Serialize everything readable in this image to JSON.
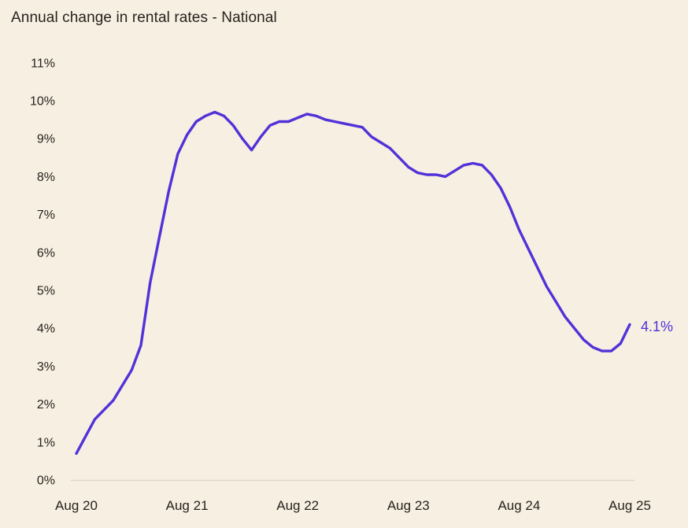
{
  "chart_data": {
    "type": "line",
    "title": "Annual change in rental rates - National",
    "xlabel": "",
    "ylabel": "",
    "ylim": [
      0,
      11
    ],
    "grid": false,
    "legend_position": "none",
    "y_tick_labels": [
      "0%",
      "1%",
      "2%",
      "3%",
      "4%",
      "5%",
      "6%",
      "7%",
      "8%",
      "9%",
      "10%",
      "11%"
    ],
    "x_tick_labels": [
      "Aug 20",
      "Aug 21",
      "Aug 22",
      "Aug 23",
      "Aug 24",
      "Aug 25"
    ],
    "end_label": "4.1%",
    "line_color": "#5132D8",
    "background_color": "#F7EFE2",
    "text_color": "#26221D",
    "axis_line_color": "#DED7C8",
    "x": [
      "Aug 2020",
      "Sep 2020",
      "Oct 2020",
      "Nov 2020",
      "Dec 2020",
      "Jan 2021",
      "Feb 2021",
      "Mar 2021",
      "Apr 2021",
      "May 2021",
      "Jun 2021",
      "Jul 2021",
      "Aug 2021",
      "Sep 2021",
      "Oct 2021",
      "Nov 2021",
      "Dec 2021",
      "Jan 2022",
      "Feb 2022",
      "Mar 2022",
      "Apr 2022",
      "May 2022",
      "Jun 2022",
      "Jul 2022",
      "Aug 2022",
      "Sep 2022",
      "Oct 2022",
      "Nov 2022",
      "Dec 2022",
      "Jan 2023",
      "Feb 2023",
      "Mar 2023",
      "Apr 2023",
      "May 2023",
      "Jun 2023",
      "Jul 2023",
      "Aug 2023",
      "Sep 2023",
      "Oct 2023",
      "Nov 2023",
      "Dec 2023",
      "Jan 2024",
      "Feb 2024",
      "Mar 2024",
      "Apr 2024",
      "May 2024",
      "Jun 2024",
      "Jul 2024",
      "Aug 2024",
      "Sep 2024",
      "Oct 2024",
      "Nov 2024",
      "Dec 2024",
      "Jan 2025",
      "Feb 2025",
      "Mar 2025",
      "Apr 2025",
      "May 2025",
      "Jun 2025",
      "Jul 2025",
      "Aug 2025"
    ],
    "values": [
      0.7,
      1.15,
      1.6,
      1.85,
      2.1,
      2.5,
      2.9,
      3.55,
      5.2,
      6.4,
      7.6,
      8.6,
      9.1,
      9.45,
      9.6,
      9.7,
      9.6,
      9.35,
      9.0,
      8.7,
      9.05,
      9.35,
      9.45,
      9.45,
      9.55,
      9.65,
      9.6,
      9.5,
      9.45,
      9.4,
      9.35,
      9.3,
      9.05,
      8.9,
      8.75,
      8.5,
      8.25,
      8.1,
      8.05,
      8.05,
      8.0,
      8.15,
      8.3,
      8.35,
      8.3,
      8.05,
      7.7,
      7.2,
      6.6,
      6.1,
      5.6,
      5.1,
      4.7,
      4.3,
      4.0,
      3.7,
      3.5,
      3.4,
      3.4,
      3.6,
      4.1
    ]
  }
}
